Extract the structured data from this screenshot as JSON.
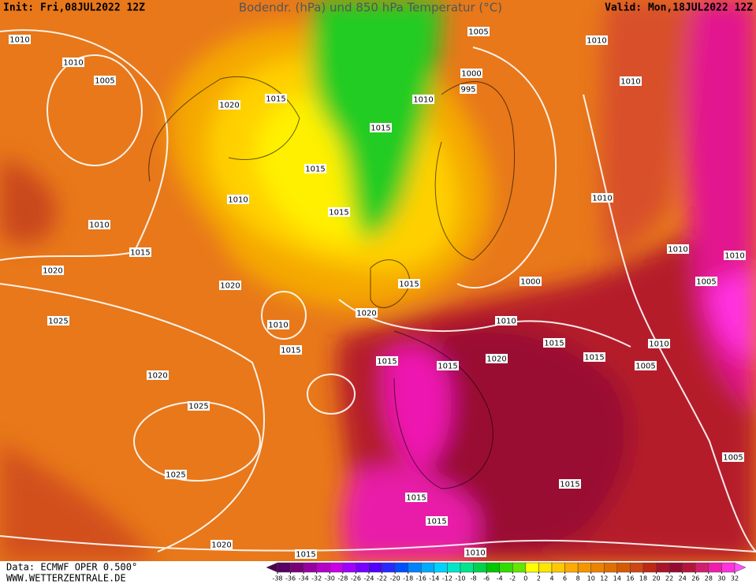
{
  "header": {
    "init": "Init: Fri,08JUL2022 12Z",
    "title": "Bodendr. (hPa) und 850 hPa Temperatur (°C)",
    "valid": "Valid: Mon,18JUL2022 12Z"
  },
  "footer": {
    "data": "Data: ECMWF OPER 0.500°",
    "site": "WWW.WETTERZENTRALE.DE"
  },
  "isobar_labels": [
    1010,
    1010,
    1005,
    1020,
    1015,
    1015,
    1010,
    1015,
    1010,
    1015,
    1020,
    1020,
    1025,
    1010,
    1015,
    1020,
    1015,
    1015,
    1010,
    1005,
    1000,
    995,
    1010,
    1010,
    1010,
    1010,
    1010,
    1005,
    1000,
    1010,
    1015,
    1015,
    1015,
    1020,
    1015,
    1010,
    1005,
    1020,
    1025,
    1025,
    1005,
    1015,
    1015,
    1015,
    1010,
    1015,
    1020
  ],
  "legend": {
    "ticks": [
      -38,
      -36,
      -34,
      -32,
      -30,
      -28,
      -26,
      -24,
      -22,
      -20,
      -18,
      -16,
      -14,
      -12,
      -10,
      -8,
      -6,
      -4,
      -2,
      0,
      2,
      4,
      6,
      8,
      10,
      12,
      14,
      16,
      18,
      20,
      22,
      24,
      26,
      28,
      30,
      32
    ],
    "colors": [
      "#4b0050",
      "#5a0064",
      "#780078",
      "#9600a0",
      "#b400c8",
      "#c800e6",
      "#a000ff",
      "#7800ff",
      "#5000ff",
      "#2828ff",
      "#0050ff",
      "#0082ff",
      "#00aaff",
      "#00d2ff",
      "#00e6c8",
      "#00e68c",
      "#00d250",
      "#00c800",
      "#32dc00",
      "#64e600",
      "#ffff00",
      "#ffe600",
      "#ffc800",
      "#ffaa00",
      "#f59600",
      "#eb8200",
      "#e16e00",
      "#d75a00",
      "#cd4614",
      "#be2814",
      "#aa1428",
      "#960a32",
      "#b4143c",
      "#d21e6e",
      "#f01eaa",
      "#ff32dc",
      "#ff50ff"
    ]
  }
}
